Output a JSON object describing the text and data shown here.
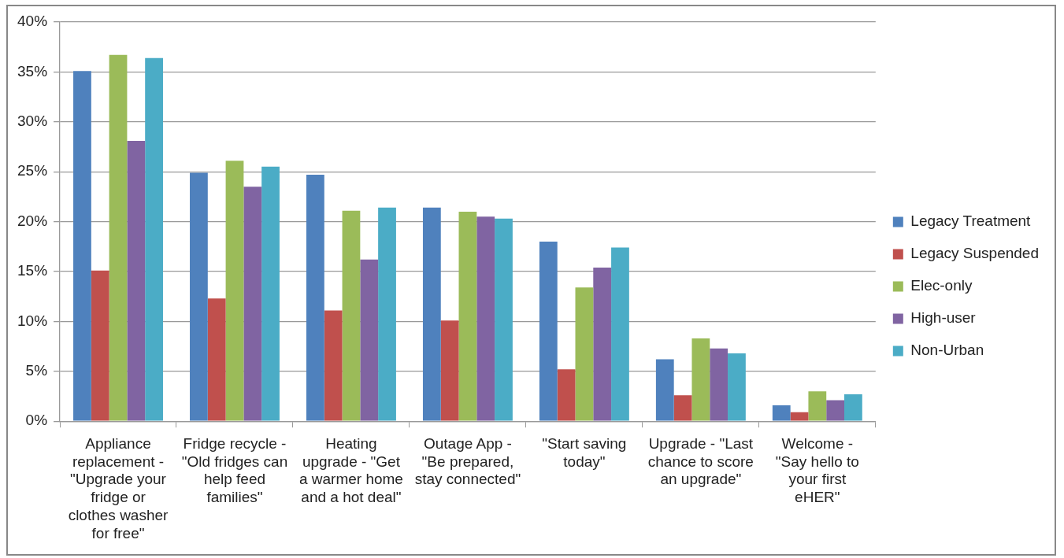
{
  "chart_data": {
    "type": "bar",
    "categories": [
      "Appliance replacement - \"Upgrade your fridge or clothes washer for free\"",
      "Fridge recycle - \"Old fridges can help feed families\"",
      "Heating upgrade - \"Get a warmer home and a hot deal\"",
      "Outage App - \"Be prepared, stay connected\"",
      "\"Start saving today\"",
      "Upgrade - \"Last chance to score an upgrade\"",
      "Welcome - \"Say hello to your first eHER\""
    ],
    "series": [
      {
        "name": "Legacy Treatment",
        "color": "#4f81bd",
        "values": [
          35.1,
          24.9,
          24.7,
          21.4,
          18.0,
          6.2,
          1.6
        ]
      },
      {
        "name": "Legacy Suspended",
        "color": "#c0504d",
        "values": [
          15.1,
          12.3,
          11.1,
          10.1,
          5.2,
          2.6,
          0.9
        ]
      },
      {
        "name": "Elec-only",
        "color": "#9bbb59",
        "values": [
          36.7,
          26.1,
          21.1,
          21.0,
          13.4,
          8.3,
          3.0
        ]
      },
      {
        "name": "High-user",
        "color": "#8064a2",
        "values": [
          28.1,
          23.5,
          16.2,
          20.5,
          15.4,
          7.3,
          2.1
        ]
      },
      {
        "name": "Non-Urban",
        "color": "#4bacc6",
        "values": [
          36.4,
          25.5,
          21.4,
          20.3,
          17.4,
          6.8,
          2.7
        ]
      }
    ],
    "ylim": [
      0,
      40
    ],
    "yticks": [
      {
        "value": 0,
        "label": "0%"
      },
      {
        "value": 5,
        "label": "5%"
      },
      {
        "value": 10,
        "label": "10%"
      },
      {
        "value": 15,
        "label": "15%"
      },
      {
        "value": 20,
        "label": "20%"
      },
      {
        "value": 25,
        "label": "25%"
      },
      {
        "value": 30,
        "label": "30%"
      },
      {
        "value": 35,
        "label": "35%"
      },
      {
        "value": 40,
        "label": "40%"
      }
    ],
    "grid": "y",
    "legend": "right"
  }
}
